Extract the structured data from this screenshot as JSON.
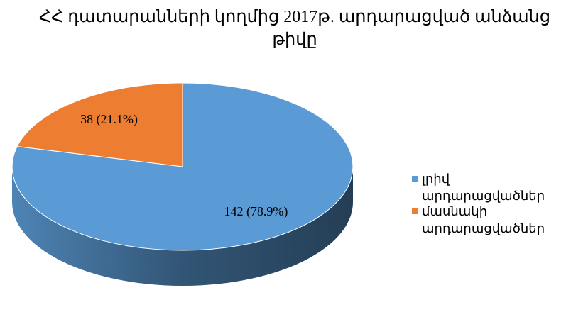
{
  "chart_data": {
    "type": "pie",
    "title": "ՀՀ դատարանների կողմից 2017թ. արդարացված անձանց թիվը",
    "categories": [
      "լրիվ արդարացվածներ",
      "մասնակի արդարացվածներ"
    ],
    "values": [
      142,
      38
    ],
    "value_labels": [
      "142 (78.9%)",
      "38 (21.1%)"
    ],
    "colors": [
      "#5b9bd5",
      "#ed7d31"
    ],
    "legend": "right"
  }
}
